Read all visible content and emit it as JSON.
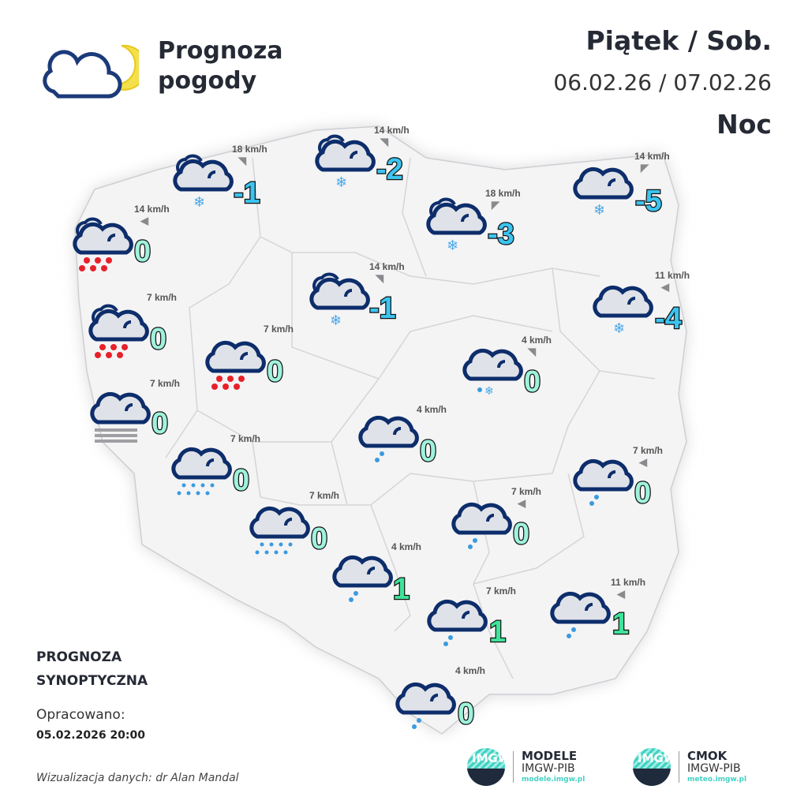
{
  "header": {
    "title_line1": "Prognoza",
    "title_line2": "pogody",
    "days": "Piątek / Sob.",
    "dates": "06.02.26 / 07.02.26",
    "period": "Noc",
    "logo_icon": "cloud-moon-icon"
  },
  "footer": {
    "forecast_type_line1": "PROGNOZA",
    "forecast_type_line2": "SYNOPTYCZNA",
    "prepared_label": "Opracowano:",
    "prepared_date": "05.02.2026 20:00",
    "visualization": "Wizualizacja danych: dr Alan Mandal",
    "logos": [
      {
        "mark": "IMGW",
        "name": "MODELE",
        "org": "IMGW-PIB",
        "url": "modele.imgw.pl"
      },
      {
        "mark": "IMGW",
        "name": "CMOK",
        "org": "IMGW-PIB",
        "url": "meteo.imgw.pl"
      }
    ]
  },
  "colors": {
    "cloud_outline": "#0d2d6b",
    "cloud_fill": "#dfe2e8",
    "rain_heavy": "#e8202a",
    "rain_light": "#3a9be0",
    "snow": "#4aa8e8",
    "temp_negative": "#3cc4f0",
    "temp_zero": "#9ff2dc",
    "temp_positive": "#3ee49a",
    "map_fill": "#f4f4f5",
    "border": "#d5d5d8"
  },
  "stations": [
    {
      "temp": "0",
      "wind": "14 km/h",
      "wind_dir": "arrow-left",
      "icon": "partly-cloudy-rain-heavy"
    },
    {
      "temp": "-1",
      "wind": "18 km/h",
      "wind_dir": "arrow-up-right",
      "icon": "partly-cloudy-snow"
    },
    {
      "temp": "-2",
      "wind": "14 km/h",
      "wind_dir": "arrow-up-right",
      "icon": "partly-cloudy-snow"
    },
    {
      "temp": "-5",
      "wind": "14 km/h",
      "wind_dir": "arrow-up-left",
      "icon": "cloudy-snow"
    },
    {
      "temp": "-3",
      "wind": "18 km/h",
      "wind_dir": "arrow-up-left",
      "icon": "partly-cloudy-snow"
    },
    {
      "temp": "0",
      "wind": "7 km/h",
      "wind_dir": "none",
      "icon": "partly-cloudy-rain-heavy"
    },
    {
      "temp": "-1",
      "wind": "14 km/h",
      "wind_dir": "arrow-up-right",
      "icon": "partly-cloudy-snow"
    },
    {
      "temp": "-4",
      "wind": "11 km/h",
      "wind_dir": "arrow-left",
      "icon": "cloudy-snow"
    },
    {
      "temp": "0",
      "wind": "7 km/h",
      "wind_dir": "none",
      "icon": "cloudy-rain-heavy"
    },
    {
      "temp": "0",
      "wind": "4 km/h",
      "wind_dir": "arrow-up-right",
      "icon": "cloudy-sleet"
    },
    {
      "temp": "0",
      "wind": "7 km/h",
      "wind_dir": "none",
      "icon": "cloudy-fog"
    },
    {
      "temp": "0",
      "wind": "4 km/h",
      "wind_dir": "none",
      "icon": "cloudy-drizzle"
    },
    {
      "temp": "0",
      "wind": "7 km/h",
      "wind_dir": "none",
      "icon": "cloudy-rain"
    },
    {
      "temp": "0",
      "wind": "7 km/h",
      "wind_dir": "arrow-left",
      "icon": "cloudy-drizzle"
    },
    {
      "temp": "0",
      "wind": "7 km/h",
      "wind_dir": "arrow-left",
      "icon": "cloudy-drizzle"
    },
    {
      "temp": "0",
      "wind": "7 km/h",
      "wind_dir": "none",
      "icon": "cloudy-rain"
    },
    {
      "temp": "1",
      "wind": "4 km/h",
      "wind_dir": "none",
      "icon": "cloudy-drizzle"
    },
    {
      "temp": "1",
      "wind": "11 km/h",
      "wind_dir": "arrow-left",
      "icon": "cloudy-drizzle"
    },
    {
      "temp": "1",
      "wind": "7 km/h",
      "wind_dir": "none",
      "icon": "cloudy-drizzle"
    },
    {
      "temp": "0",
      "wind": "4 km/h",
      "wind_dir": "none",
      "icon": "cloudy-drizzle"
    }
  ]
}
